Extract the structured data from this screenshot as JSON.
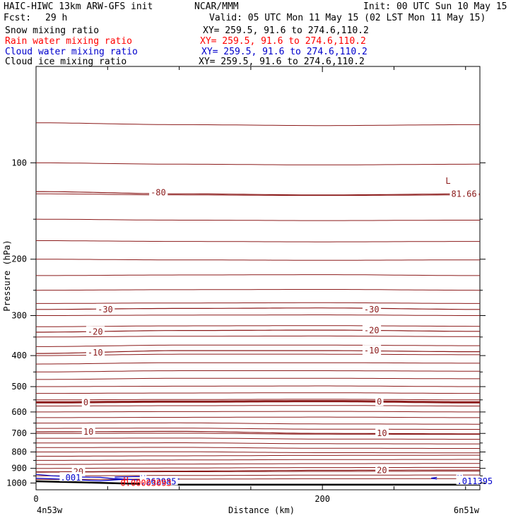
{
  "header": {
    "model": "HAIC-HIWC 13km ARW-GFS init",
    "org": "NCAR/MMM",
    "init": "Init: 00 UTC Sun 10 May 15",
    "fcst_label": "Fcst:",
    "fcst_value": "29 h",
    "valid": "Valid: 05 UTC Mon 11 May 15 (02 LST Mon 11 May 15)",
    "fields": [
      {
        "name": "Snow mixing ratio",
        "xy": "XY= 259.5, 91.6 to 274.6,110.2",
        "color": "#000000"
      },
      {
        "name": "Rain water mixing ratio",
        "xy": "XY= 259.5, 91.6 to 274.6,110.2",
        "color": "#ff0000"
      },
      {
        "name": "Cloud water mixing ratio",
        "xy": "XY= 259.5, 91.6 to 274.6,110.2",
        "color": "#0000cc"
      },
      {
        "name": "Cloud ice mixing ratio",
        "xy": "XY= 259.5, 91.6 to 274.6,110.2",
        "color": "#000000"
      }
    ]
  },
  "chart_data": {
    "type": "cross-section",
    "xlabel": "Distance (km)",
    "ylabel": "Pressure (hPa)",
    "xlim": [
      0,
      310
    ],
    "ylim": [
      50,
      1050
    ],
    "y_scale": "log",
    "x_ticks": [
      0,
      200
    ],
    "y_ticks": [
      100,
      200,
      300,
      400,
      500,
      600,
      700,
      800,
      900,
      1000
    ],
    "x_endpoints": {
      "left": "4n53w",
      "right": "6n51w"
    },
    "colors": {
      "temperature": "#8b1a1a",
      "cloud_water": "#0000cc",
      "rain": "#ff0000",
      "terrain": "#000000"
    },
    "temperature_contours": [
      {
        "value": "-80",
        "p": [
          123,
          125,
          126,
          125
        ]
      },
      {
        "value": "-30",
        "p": [
          287,
          285,
          284,
          287
        ]
      },
      {
        "value": "-20",
        "p": [
          338,
          334,
          333,
          336
        ]
      },
      {
        "value": "-10",
        "p": [
          394,
          386,
          386,
          389
        ]
      },
      {
        "value": "0",
        "p": [
          560,
          557,
          555,
          560
        ]
      },
      {
        "value": "10",
        "p": [
          692,
          690,
          700,
          702
        ]
      },
      {
        "value": "20",
        "p": [
          923,
          918,
          913,
          911
        ]
      }
    ],
    "temperature_label_points": [
      {
        "text": "-80",
        "x": 80,
        "p": 124
      },
      {
        "text": "-30",
        "x": 43,
        "p": 287
      },
      {
        "text": "-30",
        "x": 229,
        "p": 287
      },
      {
        "text": "-20",
        "x": 36,
        "p": 337
      },
      {
        "text": "-20",
        "x": 229,
        "p": 334
      },
      {
        "text": "-10",
        "x": 36,
        "p": 392
      },
      {
        "text": "-10",
        "x": 229,
        "p": 386
      },
      {
        "text": "0",
        "x": 33,
        "p": 560
      },
      {
        "text": "0",
        "x": 238,
        "p": 557
      },
      {
        "text": "10",
        "x": 33,
        "p": 692
      },
      {
        "text": "10",
        "x": 238,
        "p": 700
      },
      {
        "text": "20",
        "x": 26,
        "p": 923
      },
      {
        "text": "20",
        "x": 238,
        "p": 913
      },
      {
        "text": "81.66",
        "x": 290,
        "p": 125
      },
      {
        "text": "L",
        "x": 286,
        "p": 114
      }
    ],
    "cloud_labels": [
      {
        "text": ".001",
        "x": 17,
        "p": 963
      },
      {
        "text": "H",
        "x": 73,
        "p": 970
      },
      {
        "text": ".262985",
        "x": 73,
        "p": 990
      },
      {
        "text": "H",
        "x": 294,
        "p": 967
      },
      {
        "text": ".011395",
        "x": 294,
        "p": 987
      }
    ],
    "rain_labels": [
      {
        "text": "H",
        "x": 61,
        "p": 983
      },
      {
        "text": "0.00003093",
        "x": 59,
        "p": 1000
      }
    ],
    "terrain_p": [
      988,
      995,
      1003,
      1012,
      1012,
      1012
    ]
  }
}
